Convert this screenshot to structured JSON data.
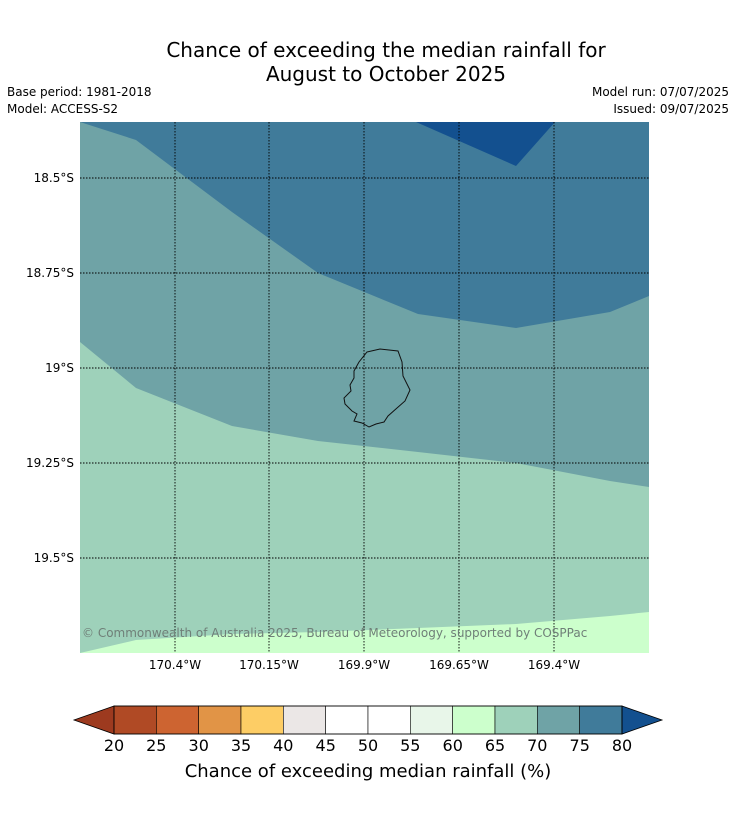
{
  "title": {
    "line1": "Chance of exceeding the median rainfall for",
    "line2": "August to October 2025"
  },
  "meta": {
    "base_period": "Base period: 1981-2018",
    "model": "Model: ACCESS-S2",
    "model_run": "Model run: 07/07/2025",
    "issued": "Issued: 09/07/2025"
  },
  "map": {
    "lat_labels": [
      "18.5°S",
      "18.75°S",
      "19°S",
      "19.25°S",
      "19.5°S"
    ],
    "lon_labels": [
      "170.4°W",
      "170.15°W",
      "169.9°W",
      "169.65°W",
      "169.4°W"
    ],
    "copyright": "© Commonwealth of Australia 2025, Bureau of Meteorology, supported by COSPPac",
    "colors": {
      "band_80_plus": "#13508f",
      "band_75_80": "#407b9a",
      "band_70_75": "#6fa3a6",
      "band_65_70": "#9ed1ba",
      "band_60_65": "#ccffcc"
    }
  },
  "colorbar": {
    "ticks": [
      "20",
      "25",
      "30",
      "35",
      "40",
      "45",
      "50",
      "55",
      "60",
      "65",
      "70",
      "75",
      "80"
    ],
    "colors": [
      "#b04a25",
      "#cd6431",
      "#e19446",
      "#fdcd65",
      "#ebe7e6",
      "#ffffff",
      "#ffffff",
      "#e8f6e9",
      "#ccffcc",
      "#9ed1ba",
      "#6fa3a6",
      "#407b9a"
    ],
    "under_color": "#9d3a1f",
    "over_color": "#13508f",
    "label": "Chance of exceeding median rainfall (%)"
  }
}
